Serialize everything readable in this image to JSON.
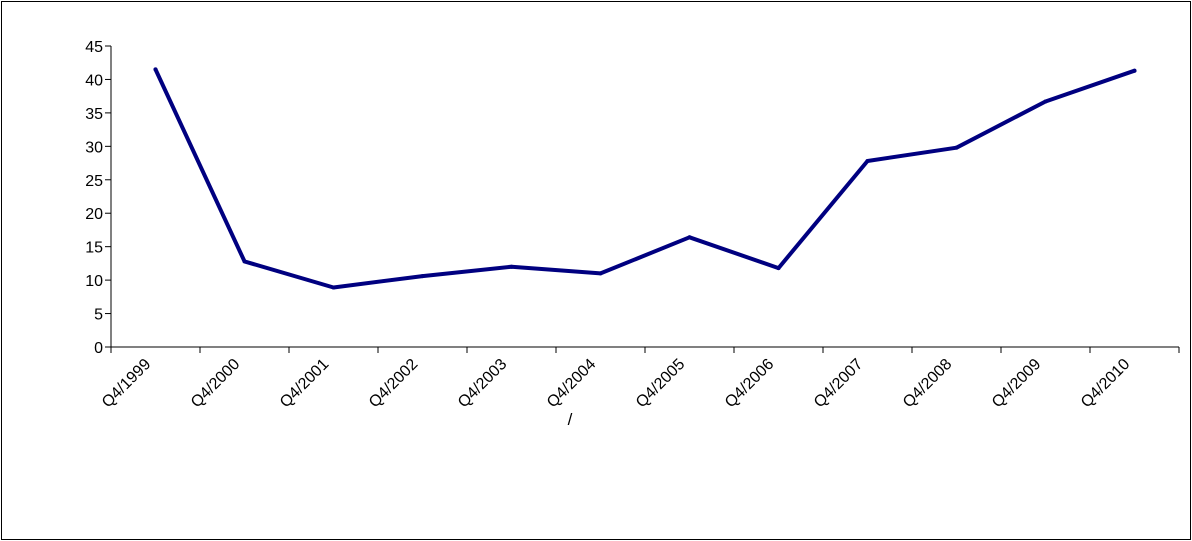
{
  "chart_data": {
    "type": "line",
    "categories": [
      "Q4/1999",
      "Q4/2000",
      "Q4/2001",
      "Q4/2002",
      "Q4/2003",
      "Q4/2004",
      "Q4/2005",
      "Q4/2006",
      "Q4/2007",
      "Q4/2008",
      "Q4/2009",
      "Q4/2010"
    ],
    "series": [
      {
        "values": [
          41.5,
          12.8,
          8.9,
          10.6,
          12.0,
          11.0,
          16.4,
          11.8,
          27.8,
          29.8,
          36.7,
          41.3
        ]
      }
    ],
    "ylim": [
      0,
      45
    ],
    "yticks": [
      0,
      5,
      10,
      15,
      20,
      25,
      30,
      35,
      40,
      45
    ],
    "footer_text": "/",
    "grid": false,
    "legend": "none",
    "line_color": "#000080"
  }
}
